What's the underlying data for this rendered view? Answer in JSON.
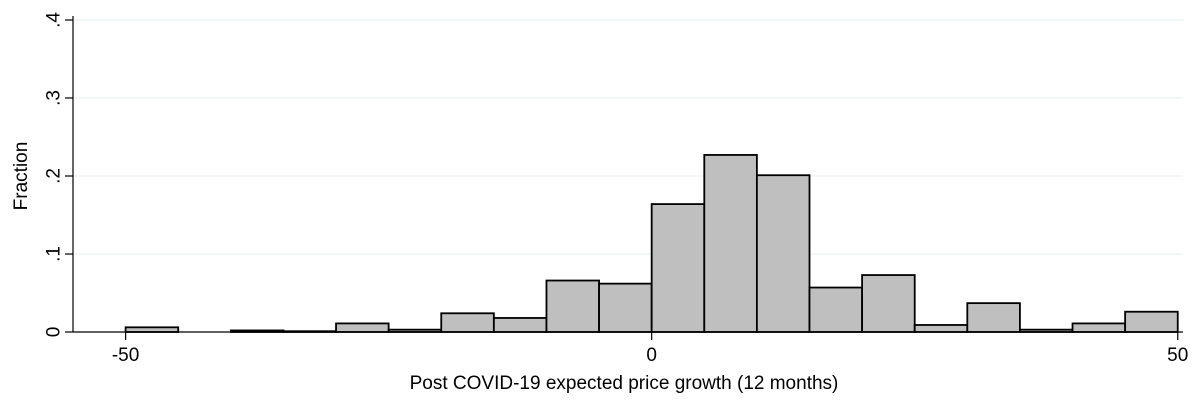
{
  "chart_data": {
    "type": "bar",
    "title": "",
    "xlabel": "Post COVID-19 expected price growth (12 months)",
    "ylabel": "Fraction",
    "xlim": [
      -55,
      50.5
    ],
    "ylim": [
      0,
      0.4
    ],
    "x_ticks": [
      -50,
      0,
      50
    ],
    "x_tick_labels": [
      "-50",
      "0",
      "50"
    ],
    "y_ticks": [
      0,
      0.1,
      0.2,
      0.3,
      0.4
    ],
    "y_tick_labels": [
      "0",
      ".1",
      ".2",
      ".3",
      ".4"
    ],
    "grid": true,
    "bar_color": "#bfbfbf",
    "bar_edge_color": "#000000",
    "grid_color": "#eaf0f2",
    "bin_width": 5,
    "bin_starts": [
      -50,
      -45,
      -40,
      -35,
      -30,
      -25,
      -20,
      -15,
      -10,
      -5,
      0,
      5,
      10,
      15,
      20,
      25,
      30,
      35,
      40,
      45
    ],
    "values": [
      0.006,
      0,
      0.002,
      0.001,
      0.011,
      0.003,
      0.024,
      0.018,
      0.066,
      0.062,
      0.164,
      0.227,
      0.201,
      0.057,
      0.073,
      0.009,
      0.037,
      0.003,
      0.011,
      0.026
    ]
  }
}
